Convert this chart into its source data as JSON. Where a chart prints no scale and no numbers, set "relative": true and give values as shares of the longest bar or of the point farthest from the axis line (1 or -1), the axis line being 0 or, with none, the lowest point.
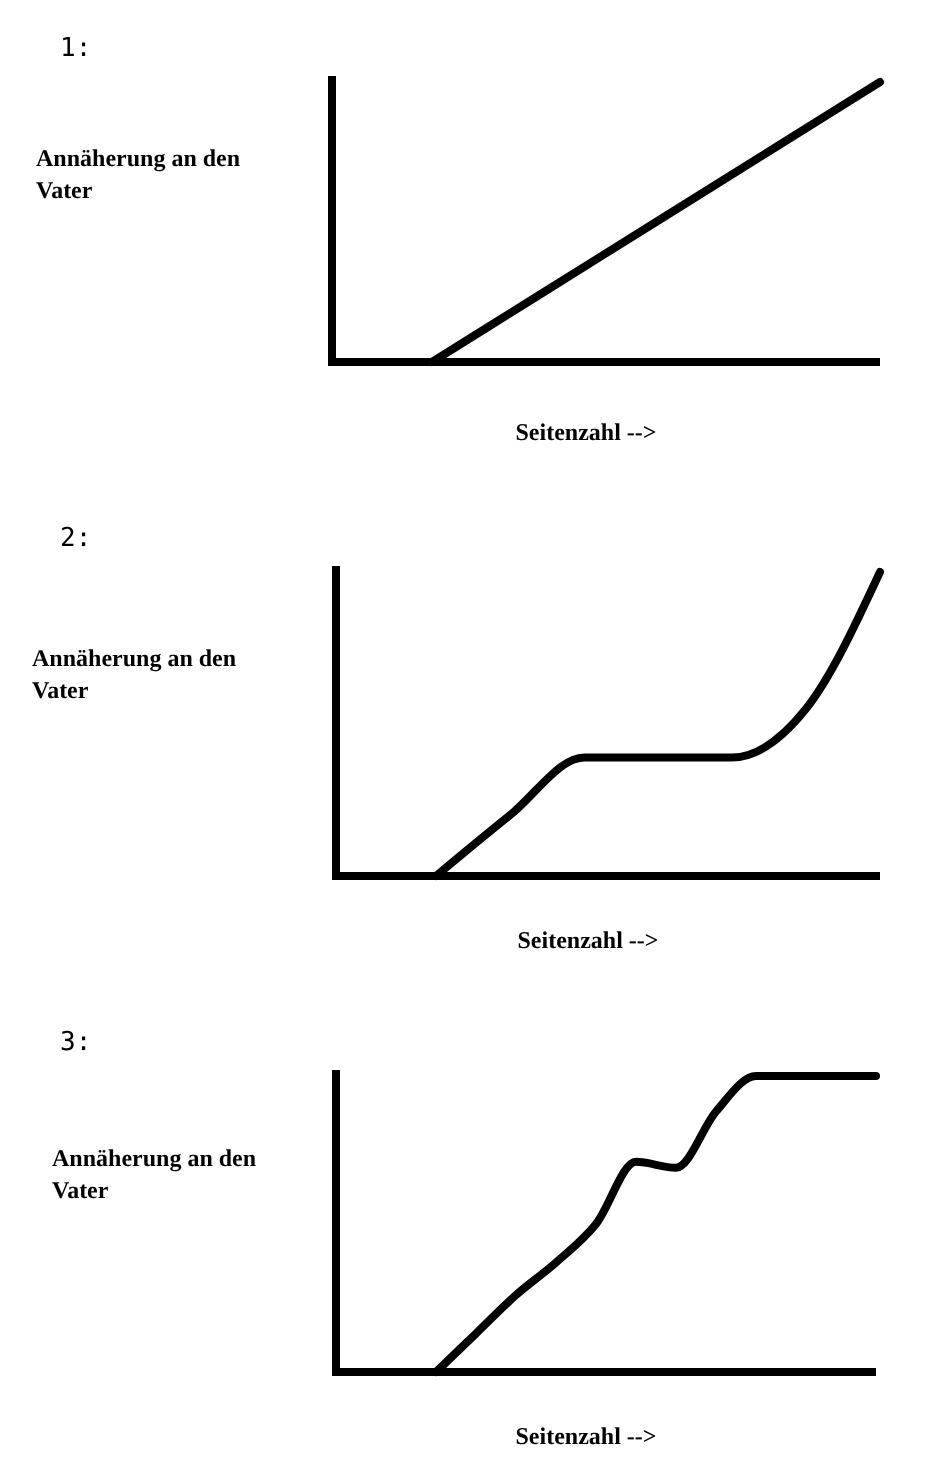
{
  "chart_data": [
    {
      "type": "line",
      "annotations": [
        "1:"
      ],
      "ylabel": "Annäherung an den Vater",
      "xlabel": "Seitenzahl -->",
      "relative": true,
      "grid": false,
      "marker": "none",
      "categories": [
        null,
        null,
        null,
        null,
        null
      ],
      "series": [
        {
          "color": "#000000",
          "values": [
            0,
            0.25,
            0.5,
            0.75,
            1
          ]
        }
      ]
    },
    {
      "type": "line",
      "annotations": [
        "2:"
      ],
      "ylabel": "Annäherung an den Vater",
      "xlabel": "Seitenzahl -->",
      "relative": true,
      "grid": false,
      "marker": "none",
      "categories": [
        null,
        null,
        null,
        null,
        null,
        null,
        null
      ],
      "series": [
        {
          "color": "#000000",
          "values": [
            0,
            0.2,
            0.39,
            0.39,
            0.39,
            0.55,
            1
          ]
        }
      ]
    },
    {
      "type": "line",
      "annotations": [
        "3:"
      ],
      "ylabel": "Annäherung an den Vater",
      "xlabel": "Seitenzahl -->",
      "relative": true,
      "grid": false,
      "marker": "none",
      "categories": [
        null,
        null,
        null,
        null,
        null,
        null,
        null,
        null,
        null,
        null,
        null,
        null
      ],
      "series": [
        {
          "color": "#000000",
          "values": [
            0,
            0.13,
            0.26,
            0.37,
            0.5,
            0.71,
            0.69,
            0.88,
            1,
            1,
            1,
            1
          ]
        }
      ]
    }
  ]
}
